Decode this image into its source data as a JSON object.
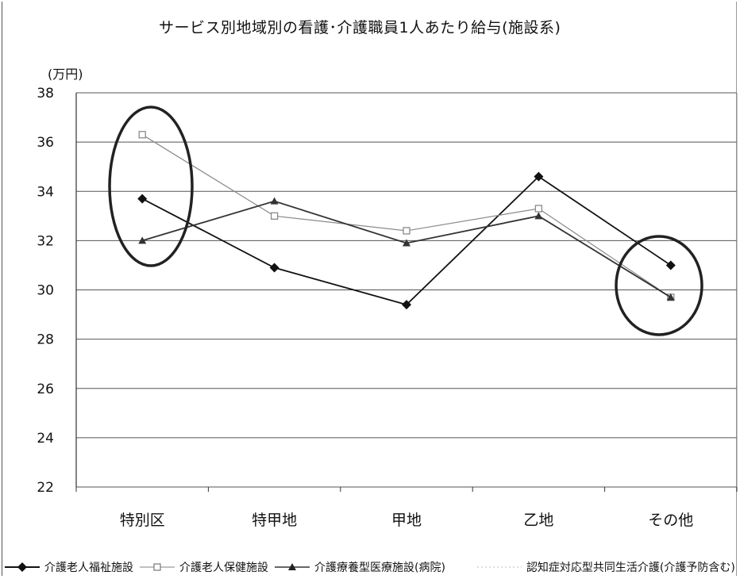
{
  "chart_data": {
    "type": "line",
    "title": "サービス別地域別の看護･介護職員1人あたり給与(施設系)",
    "ylabel": "(万円)",
    "ylim": [
      22,
      38
    ],
    "yticks": [
      "38",
      "36",
      "34",
      "32",
      "30",
      "28",
      "26",
      "24",
      "22"
    ],
    "categories": [
      "特別区",
      "特甲地",
      "甲地",
      "乙地",
      "その他"
    ],
    "grid": true,
    "legend_position": "bottom",
    "series": [
      {
        "name": "介護老人福祉施設",
        "values": [
          33.7,
          30.9,
          29.4,
          34.6,
          31.0
        ],
        "color": "#111111",
        "marker": "diamond"
      },
      {
        "name": "介護老人保健施設",
        "values": [
          36.3,
          33.0,
          32.4,
          33.3,
          29.7
        ],
        "color": "#8a8a8a",
        "marker": "square"
      },
      {
        "name": "介護療養型医療施設(病院)",
        "values": [
          32.0,
          33.6,
          31.9,
          33.0,
          29.7
        ],
        "color": "#333333",
        "marker": "triangle"
      },
      {
        "name": "認知症対応型共同生活介護(介護予防含む)",
        "values": [
          null,
          null,
          null,
          null,
          null
        ],
        "color": "#bbbbbb",
        "marker": "none"
      }
    ],
    "annotations": [
      {
        "type": "ellipse",
        "category": "特別区"
      },
      {
        "type": "ellipse",
        "category": "その他"
      }
    ]
  }
}
